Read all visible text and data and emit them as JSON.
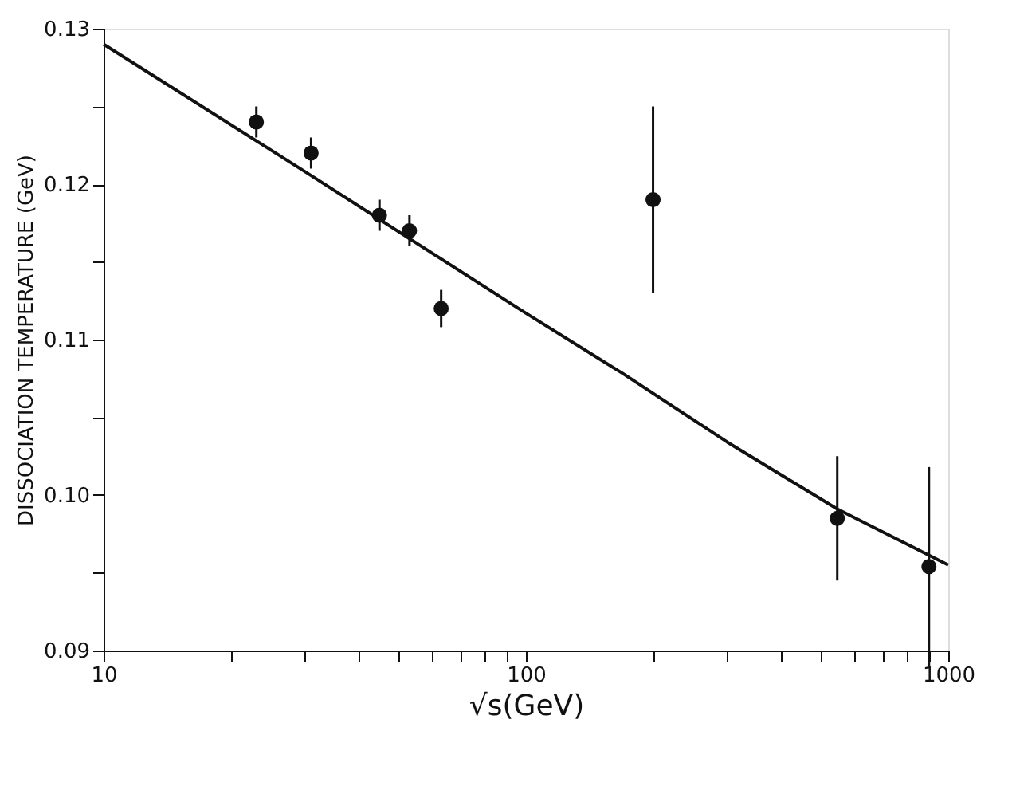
{
  "chart_data": {
    "type": "scatter",
    "xlabel": "√s(GeV)",
    "ylabel": "DISSOCIATION  TEMPERATURE  (GeV)",
    "log": "x",
    "xlim": [
      10,
      1000
    ],
    "ylim": [
      0.09,
      0.13
    ],
    "xticks": [
      10,
      {
        "value": 20,
        "label": null
      },
      {
        "value": 30,
        "label": null
      },
      {
        "value": 40,
        "label": null
      },
      {
        "value": 50,
        "label": null
      },
      {
        "value": 60,
        "label": null
      },
      {
        "value": 70,
        "label": null
      },
      {
        "value": 80,
        "label": null
      },
      {
        "value": 90,
        "label": null
      },
      100,
      {
        "value": 200,
        "label": null
      },
      {
        "value": 300,
        "label": null
      },
      {
        "value": 400,
        "label": null
      },
      {
        "value": 500,
        "label": null
      },
      {
        "value": 600,
        "label": null
      },
      {
        "value": 700,
        "label": null
      },
      {
        "value": 800,
        "label": null
      },
      {
        "value": 900,
        "label": null
      },
      1000
    ],
    "yticks": [
      0.09,
      {
        "value": 0.095,
        "label": null
      },
      {
        "value": 0.1,
        "label": "0.10"
      },
      {
        "value": 0.105,
        "label": null
      },
      0.11,
      {
        "value": 0.115,
        "label": null
      },
      0.12,
      {
        "value": 0.125,
        "label": null
      },
      0.13
    ],
    "grid": false,
    "marker": "circle",
    "series": [
      {
        "color": "#111111",
        "x": [
          23,
          31,
          45,
          53,
          63,
          200,
          546,
          900
        ],
        "values": [
          0.124,
          0.122,
          0.118,
          0.117,
          0.112,
          0.119,
          0.0985,
          0.0954
        ],
        "errors": [
          0.001,
          0.001,
          0.001,
          0.001,
          0.0012,
          0.006,
          0.004,
          0.0064
        ]
      },
      {
        "type": "line",
        "color": "#111111",
        "line_style": "solid",
        "marker": "none",
        "x": [
          10,
          30,
          100,
          170,
          300,
          546,
          1000
        ],
        "values": [
          0.129,
          0.1208,
          0.1117,
          0.1078,
          0.1034,
          0.0991,
          0.0955
        ]
      }
    ]
  }
}
